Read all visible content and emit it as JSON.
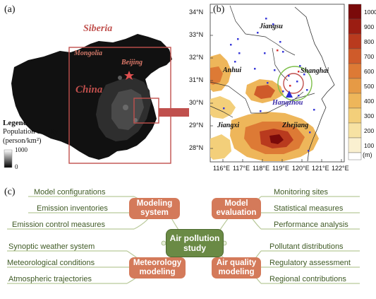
{
  "panel_a": {
    "label": "(a)",
    "places": {
      "siberia": "Siberia",
      "mongolia": "Mongolia",
      "beijing": "Beijing",
      "china": "China"
    },
    "legend": {
      "title": "Legend",
      "subtitle": "Population density",
      "unit": "(person/km²)",
      "max": "1000",
      "min": "0"
    },
    "colors": {
      "land": "#0a0a0a",
      "box": "#c0504d",
      "arrow": "#c0504d"
    }
  },
  "panel_b": {
    "label": "(b)",
    "places": {
      "jiangsu": "Jiangsu",
      "anhui": "Anhui",
      "shanghai": "Shanghai",
      "hangzhou": "Hangzhou",
      "jiangxi": "Jiangxi",
      "zhejiang": "Zhejiang"
    },
    "lat_labels": [
      "34°N",
      "33°N",
      "32°N",
      "31°N",
      "30°N",
      "29°N",
      "28°N"
    ],
    "lon_labels": [
      "116°E",
      "117°E",
      "118°E",
      "119°E",
      "120°E",
      "121°E",
      "122°E"
    ],
    "colorbar": {
      "ticks": [
        "1000",
        "900",
        "800",
        "700",
        "600",
        "500",
        "400",
        "300",
        "200",
        "100"
      ],
      "unit": "(m)",
      "colors": [
        "#7a0a0a",
        "#9b1d12",
        "#b93a1e",
        "#cf5b2a",
        "#dd7a35",
        "#e69a45",
        "#eeb65a",
        "#f3cf7a",
        "#f7e2a3",
        "#faf0d0",
        "#ffffff"
      ]
    }
  },
  "panel_c": {
    "label": "(c)",
    "center": "Air pollution study",
    "nodes": [
      {
        "id": "modeling-system",
        "label": "Modeling system",
        "leaves": [
          "Model configurations",
          "Emission inventories",
          "Emission control measures"
        ]
      },
      {
        "id": "model-evaluation",
        "label": "Model evaluation",
        "leaves": [
          "Monitoring sites",
          "Statistical measures",
          "Performance analysis"
        ]
      },
      {
        "id": "meteorology-modeling",
        "label": "Meteorology modeling",
        "leaves": [
          "Synoptic weather system",
          "Meteorological conditions",
          "Atmospheric trajectories"
        ]
      },
      {
        "id": "air-quality-modeling",
        "label": "Air quality modeling",
        "leaves": [
          "Pollutant distributions",
          "Regulatory assessment",
          "Regional contributions"
        ]
      }
    ],
    "colors": {
      "node": "#d47a5a",
      "center": "#6a8a45",
      "leaf_text": "#3f5a25",
      "line": "#b9c99a"
    }
  }
}
